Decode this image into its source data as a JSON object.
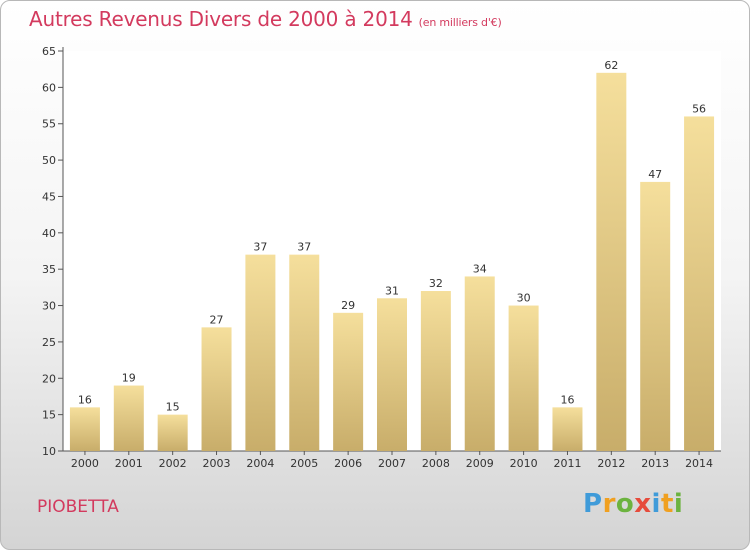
{
  "chart_data": {
    "type": "bar",
    "title": "Autres Revenus Divers de 2000 à 2014",
    "unit_label": "(en milliers d'€)",
    "categories": [
      "2000",
      "2001",
      "2002",
      "2003",
      "2004",
      "2005",
      "2006",
      "2007",
      "2008",
      "2009",
      "2010",
      "2011",
      "2012",
      "2013",
      "2014"
    ],
    "values": [
      16,
      19,
      15,
      27,
      37,
      37,
      29,
      31,
      32,
      34,
      30,
      16,
      62,
      47,
      56
    ],
    "ylim": [
      10,
      65
    ],
    "yticks": [
      10,
      15,
      20,
      25,
      30,
      35,
      40,
      45,
      50,
      55,
      60,
      65
    ],
    "xlabel": "",
    "ylabel": "",
    "grid": false,
    "bar_color_top": "#f5df9c",
    "bar_color_bottom": "#c8ad6a"
  },
  "footer": {
    "place": "PIOBETTA",
    "logo_letters": [
      "P",
      "r",
      "o",
      "x",
      "i",
      "t",
      "i"
    ]
  }
}
